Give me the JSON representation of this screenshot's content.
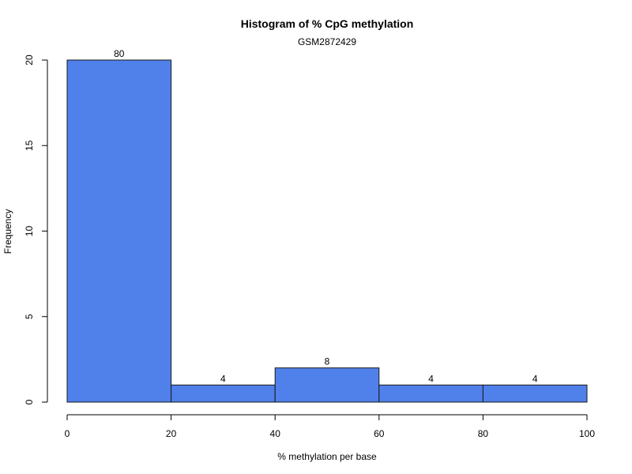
{
  "chart_data": {
    "type": "bar",
    "title": "Histogram of % CpG methylation",
    "subtitle": "GSM2872429",
    "xlabel": "% methylation per base",
    "ylabel": "Frequency",
    "xlim": [
      0,
      100
    ],
    "ylim": [
      0,
      20
    ],
    "x_ticks": [
      "0",
      "20",
      "40",
      "60",
      "80",
      "100"
    ],
    "y_ticks": [
      "0",
      "5",
      "10",
      "15",
      "20"
    ],
    "bins": [
      {
        "start": 0,
        "end": 20,
        "frequency": 20,
        "label": "80"
      },
      {
        "start": 20,
        "end": 40,
        "frequency": 1,
        "label": "4"
      },
      {
        "start": 40,
        "end": 60,
        "frequency": 2,
        "label": "8"
      },
      {
        "start": 60,
        "end": 80,
        "frequency": 1,
        "label": "4"
      },
      {
        "start": 80,
        "end": 100,
        "frequency": 1,
        "label": "4"
      }
    ],
    "bar_color": "#5080ea",
    "grid": false
  }
}
